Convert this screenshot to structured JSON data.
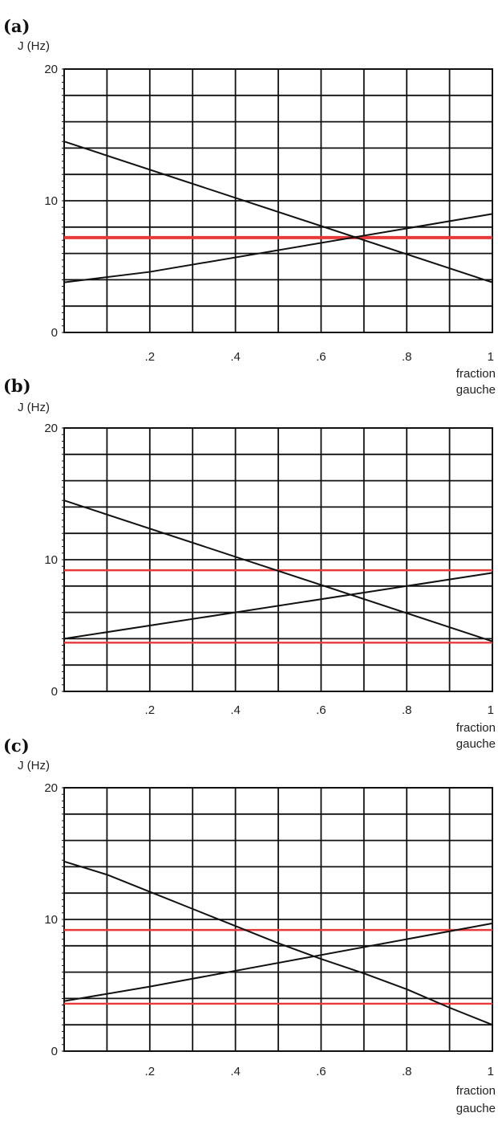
{
  "colors": {
    "grid": "#111111",
    "curve": "#111111",
    "reference": "#e8393b",
    "background": "#ffffff"
  },
  "chart_data": [
    {
      "panel": "(a)",
      "type": "line",
      "ylabel": "J (Hz)",
      "xlabel_lines": [
        "fraction",
        "gauche"
      ],
      "xlim": [
        0,
        1
      ],
      "ylim": [
        0,
        20
      ],
      "x_ticks": [
        0.2,
        0.4,
        0.6,
        0.8,
        1
      ],
      "x_tick_labels": [
        ".2",
        ".4",
        ".6",
        ".8",
        "1"
      ],
      "y_ticks": [
        0,
        10,
        20
      ],
      "y_tick_labels": [
        "0",
        "10",
        "20"
      ],
      "grid": true,
      "series": [
        {
          "x": [
            0,
            1
          ],
          "y": [
            14.5,
            3.8
          ]
        },
        {
          "x": [
            0,
            0.2,
            1
          ],
          "y": [
            3.8,
            4.6,
            9.0
          ]
        }
      ],
      "reference_lines": [
        {
          "y": 7.2,
          "thick": true
        }
      ]
    },
    {
      "panel": "(b)",
      "type": "line",
      "ylabel": "J (Hz)",
      "xlabel_lines": [
        "fraction",
        "gauche"
      ],
      "xlim": [
        0,
        1
      ],
      "ylim": [
        0,
        20
      ],
      "x_ticks": [
        0.2,
        0.4,
        0.6,
        0.8,
        1
      ],
      "x_tick_labels": [
        ".2",
        ".4",
        ".6",
        ".8",
        "1"
      ],
      "y_ticks": [
        0,
        10,
        20
      ],
      "y_tick_labels": [
        "0",
        "10",
        "20"
      ],
      "grid": true,
      "series": [
        {
          "x": [
            0,
            1
          ],
          "y": [
            14.5,
            3.8
          ]
        },
        {
          "x": [
            0,
            1
          ],
          "y": [
            4.0,
            9.0
          ]
        }
      ],
      "reference_lines": [
        {
          "y": 9.2,
          "thick": false
        },
        {
          "y": 3.7,
          "thick": false
        }
      ]
    },
    {
      "panel": "(c)",
      "type": "line",
      "ylabel": "J (Hz)",
      "xlabel_lines": [
        "fraction",
        "gauche"
      ],
      "xlim": [
        0,
        1
      ],
      "ylim": [
        0,
        20
      ],
      "x_ticks": [
        0.2,
        0.4,
        0.6,
        0.8,
        1
      ],
      "x_tick_labels": [
        ".2",
        ".4",
        ".6",
        ".8",
        "1"
      ],
      "y_ticks": [
        0,
        10,
        20
      ],
      "y_tick_labels": [
        "0",
        "10",
        "20"
      ],
      "grid": true,
      "series": [
        {
          "x": [
            0,
            0.1,
            0.2,
            0.3,
            0.4,
            0.5,
            0.6,
            0.7,
            0.8,
            0.9,
            1
          ],
          "y": [
            14.4,
            13.4,
            12.1,
            10.8,
            9.5,
            8.2,
            7.0,
            5.9,
            4.7,
            3.3,
            2.0
          ]
        },
        {
          "x": [
            0,
            0.2,
            1
          ],
          "y": [
            3.8,
            4.9,
            9.7
          ]
        }
      ],
      "reference_lines": [
        {
          "y": 9.2,
          "thick": false
        },
        {
          "y": 3.6,
          "thick": false
        }
      ]
    }
  ]
}
